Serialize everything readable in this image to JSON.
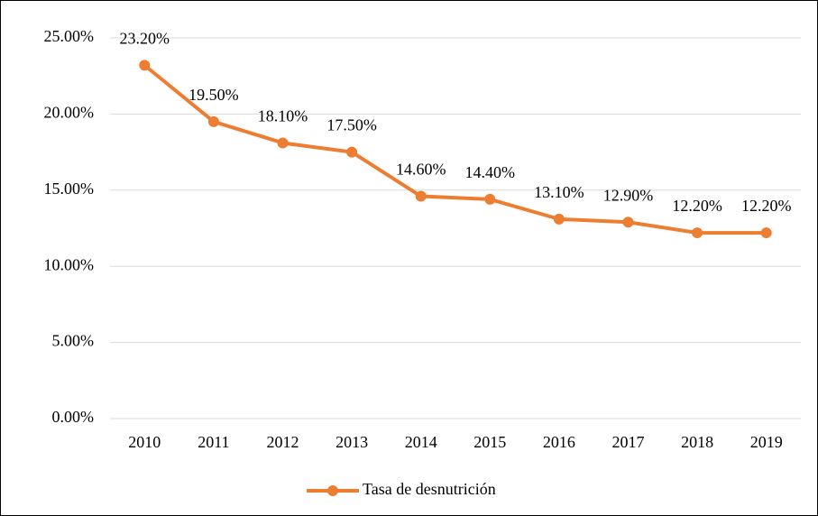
{
  "chart_data": {
    "type": "line",
    "categories": [
      "2010",
      "2011",
      "2012",
      "2013",
      "2014",
      "2015",
      "2016",
      "2017",
      "2018",
      "2019"
    ],
    "series": [
      {
        "name": "Tasa de desnutrición",
        "color": "#ed7d31",
        "values": [
          23.2,
          19.5,
          18.1,
          17.5,
          14.6,
          14.4,
          13.1,
          12.9,
          12.2,
          12.2
        ],
        "value_labels": [
          "23.20%",
          "19.50%",
          "18.10%",
          "17.50%",
          "14.60%",
          "14.40%",
          "13.10%",
          "12.90%",
          "12.20%",
          "12.20%"
        ]
      }
    ],
    "ylim": [
      0,
      25
    ],
    "yticks": [
      {
        "value": 0,
        "label": "0.00%"
      },
      {
        "value": 5,
        "label": "5.00%"
      },
      {
        "value": 10,
        "label": "10.00%"
      },
      {
        "value": 15,
        "label": "15.00%"
      },
      {
        "value": 20,
        "label": "20.00%"
      },
      {
        "value": 25,
        "label": "25.00%"
      }
    ],
    "grid": true,
    "legend": "bottom"
  }
}
